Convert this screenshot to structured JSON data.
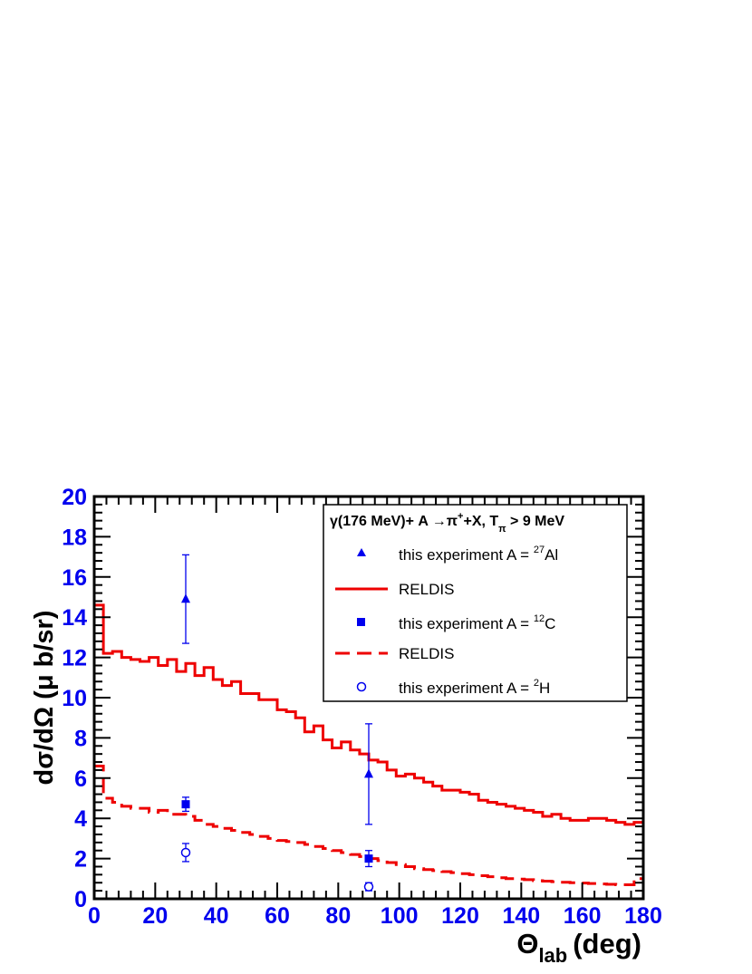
{
  "chart_data": {
    "type": "line",
    "title": "",
    "xlabel": "Θ",
    "xlabel_sub": "lab",
    "xlabel_unit": "(deg)",
    "ylabel": "dσ/dΩ  (μ b/sr)",
    "xlim": [
      0,
      180
    ],
    "ylim": [
      0,
      20
    ],
    "x_ticks": [
      "0",
      "20",
      "40",
      "60",
      "80",
      "100",
      "120",
      "140",
      "160",
      "180"
    ],
    "y_ticks": [
      "0",
      "2",
      "4",
      "6",
      "8",
      "10",
      "12",
      "14",
      "16",
      "18",
      "20"
    ],
    "grid": false,
    "legend_position": "top-right",
    "legend_header": {
      "prefix": "γ(176 MeV)+ A →π",
      "pi_sup": "+",
      "mid": "+X, T",
      "t_sub": "π",
      "suffix": " > 9 MeV"
    },
    "series": [
      {
        "label": "RELDIS",
        "style": "solid",
        "color": "#ee0000",
        "x": [
          1.5,
          4.5,
          7.5,
          10.5,
          13.5,
          16.5,
          19.5,
          22.5,
          25.5,
          28.5,
          31.5,
          34.5,
          37.5,
          40.5,
          43.5,
          46.5,
          49.5,
          52.5,
          55.5,
          58.5,
          61.5,
          64.5,
          67.5,
          70.5,
          73.5,
          76.5,
          79.5,
          82.5,
          85.5,
          88.5,
          91.5,
          94.5,
          97.5,
          100.5,
          103.5,
          106.5,
          109.5,
          112.5,
          115.5,
          118.5,
          121.5,
          124.5,
          127.5,
          130.5,
          133.5,
          136.5,
          139.5,
          142.5,
          145.5,
          148.5,
          151.5,
          154.5,
          157.5,
          160.5,
          163.5,
          166.5,
          169.5,
          172.5,
          175.5,
          178.5
        ],
        "y": [
          14.6,
          12.2,
          12.3,
          12.0,
          11.9,
          11.8,
          12.0,
          11.6,
          11.9,
          11.3,
          11.7,
          11.1,
          11.5,
          10.9,
          10.6,
          10.8,
          10.2,
          10.2,
          9.9,
          9.9,
          9.4,
          9.3,
          9.0,
          8.3,
          8.6,
          7.9,
          7.5,
          7.8,
          7.4,
          7.2,
          6.9,
          6.8,
          6.4,
          6.1,
          6.2,
          6.0,
          5.8,
          5.6,
          5.4,
          5.4,
          5.3,
          5.2,
          4.9,
          4.8,
          4.7,
          4.6,
          4.5,
          4.4,
          4.3,
          4.1,
          4.2,
          4.0,
          3.9,
          3.9,
          4.0,
          4.0,
          3.9,
          3.8,
          3.7,
          3.8
        ]
      },
      {
        "label": "RELDIS",
        "style": "dashed",
        "color": "#ee0000",
        "x": [
          1.5,
          4.5,
          7.5,
          10.5,
          13.5,
          16.5,
          19.5,
          22.5,
          25.5,
          28.5,
          31.5,
          34.5,
          37.5,
          40.5,
          43.5,
          46.5,
          49.5,
          52.5,
          55.5,
          58.5,
          61.5,
          64.5,
          67.5,
          70.5,
          73.5,
          76.5,
          79.5,
          82.5,
          85.5,
          88.5,
          91.5,
          94.5,
          97.5,
          100.5,
          103.5,
          106.5,
          109.5,
          112.5,
          115.5,
          118.5,
          121.5,
          124.5,
          127.5,
          130.5,
          133.5,
          136.5,
          139.5,
          142.5,
          145.5,
          148.5,
          151.5,
          154.5,
          157.5,
          160.5,
          163.5,
          166.5,
          169.5,
          172.5,
          175.5,
          178.5
        ],
        "y": [
          6.6,
          5.0,
          4.8,
          4.6,
          4.5,
          4.5,
          4.3,
          4.4,
          4.2,
          4.2,
          4.1,
          3.9,
          3.7,
          3.6,
          3.5,
          3.4,
          3.3,
          3.2,
          3.1,
          3.0,
          2.9,
          2.85,
          2.8,
          2.7,
          2.6,
          2.5,
          2.4,
          2.3,
          2.2,
          2.1,
          2.0,
          1.9,
          1.8,
          1.7,
          1.6,
          1.5,
          1.45,
          1.4,
          1.35,
          1.3,
          1.25,
          1.2,
          1.15,
          1.1,
          1.05,
          1.0,
          0.98,
          0.95,
          0.9,
          0.88,
          0.85,
          0.82,
          0.8,
          0.78,
          0.76,
          0.74,
          0.72,
          0.7,
          0.7,
          1.0
        ]
      }
    ],
    "points": [
      {
        "label": "this experiment  A = ",
        "sup": "27",
        "label_end": "Al",
        "marker": "triangle",
        "color": "#0000ee",
        "x": [
          30,
          90
        ],
        "y": [
          14.9,
          6.2
        ],
        "err_low": [
          2.2,
          2.5
        ],
        "err_high": [
          2.2,
          2.5
        ]
      },
      {
        "label": "this experiment  A = ",
        "sup": "12",
        "label_end": "C",
        "marker": "square",
        "color": "#0000ee",
        "x": [
          30,
          90
        ],
        "y": [
          4.7,
          2.0
        ],
        "err_low": [
          0.35,
          0.4
        ],
        "err_high": [
          0.35,
          0.4
        ]
      },
      {
        "label": "this experiment  A = ",
        "sup": "2",
        "label_end": "H",
        "marker": "open-circle",
        "color": "#0000ee",
        "x": [
          30,
          90
        ],
        "y": [
          2.3,
          0.6
        ],
        "err_low": [
          0.45,
          0.2
        ],
        "err_high": [
          0.45,
          0.2
        ]
      }
    ]
  }
}
